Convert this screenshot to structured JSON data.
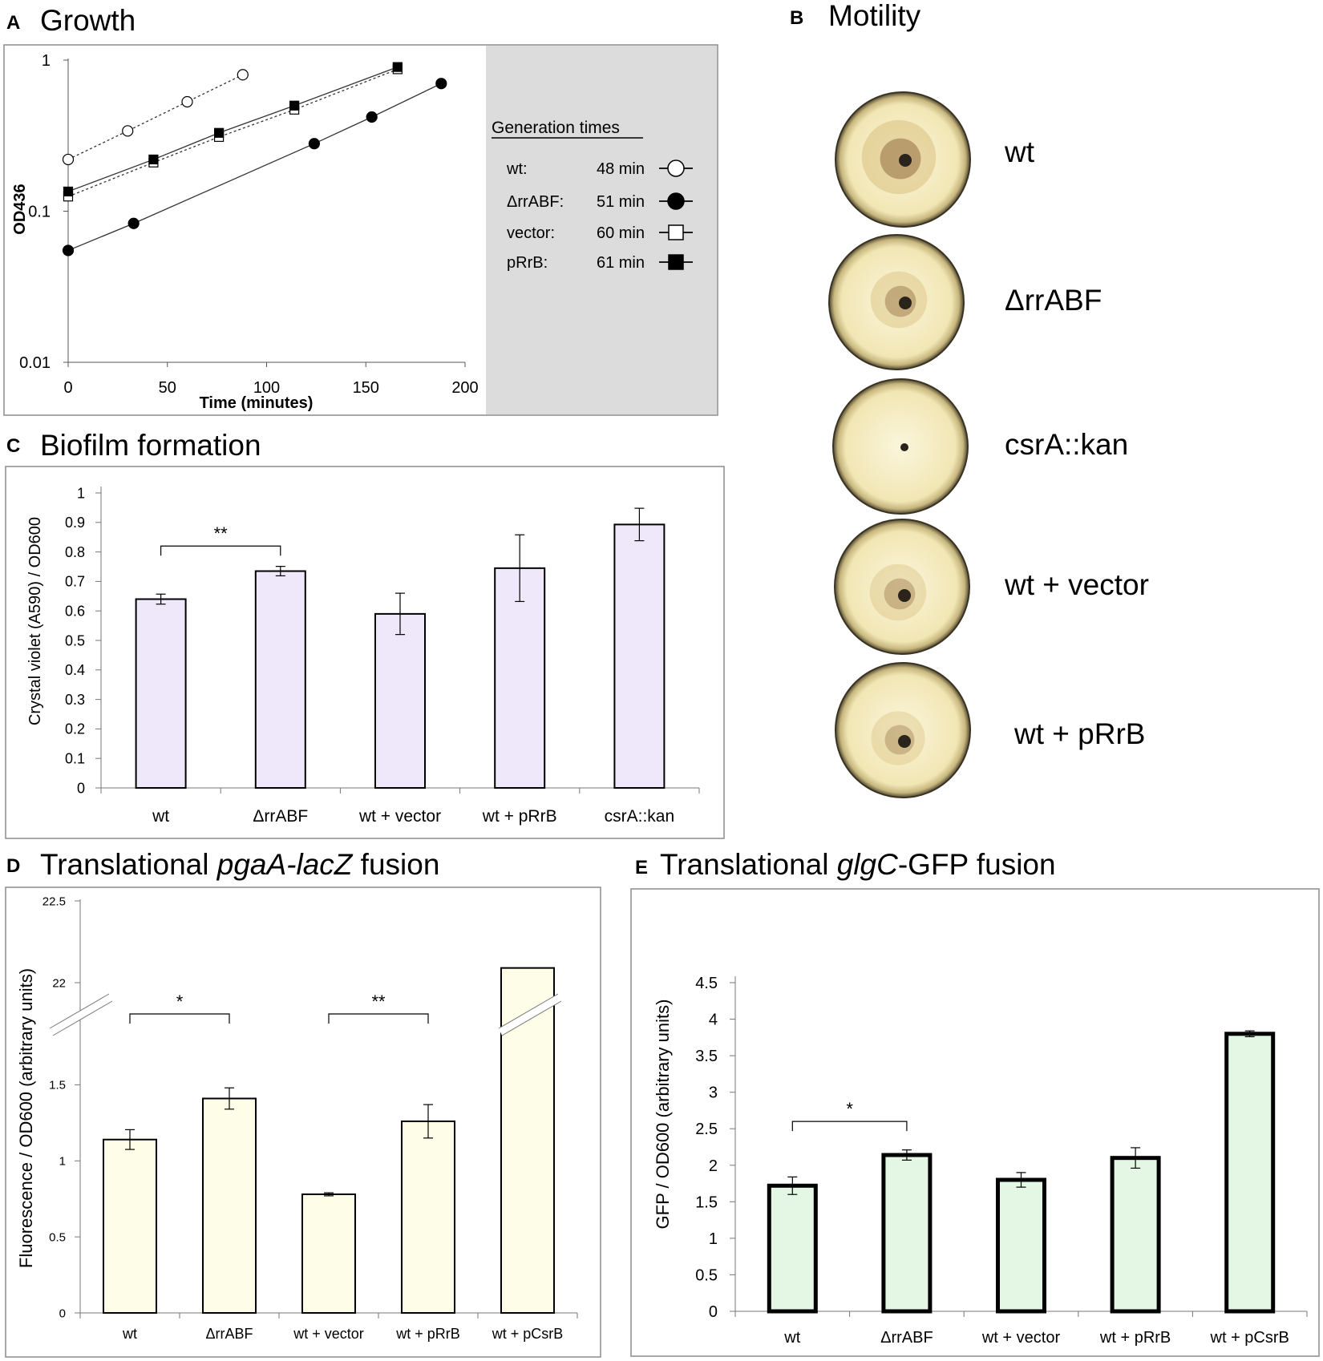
{
  "panels": {
    "A": {
      "letter": "A",
      "title": "Growth"
    },
    "B": {
      "letter": "B",
      "title": "Motility"
    },
    "C": {
      "letter": "C",
      "title": "Biofilm formation"
    },
    "D": {
      "letter": "D",
      "title_pre": "Translational ",
      "title_em": "pgaA-lacZ",
      "title_post": " fusion"
    },
    "E": {
      "letter": "E",
      "title_pre": "Translational ",
      "title_em": "glgC",
      "title_post": "-GFP fusion"
    }
  },
  "legend": {
    "title": "Generation times",
    "rows": [
      {
        "strain": "wt:",
        "time": "48 min",
        "marker": "open-circle"
      },
      {
        "strain": "ΔrrABF:",
        "time": "51 min",
        "marker": "filled-circle"
      },
      {
        "strain": "vector:",
        "time": "60 min",
        "marker": "open-square"
      },
      {
        "strain": "pRrB:",
        "time": "61 min",
        "marker": "filled-square"
      }
    ]
  },
  "motility": {
    "plates": [
      {
        "label": "wt",
        "halo": 0.55,
        "strength": 0.95
      },
      {
        "label": "ΔrrABF",
        "halo": 0.42,
        "strength": 0.75
      },
      {
        "label": "csrA::kan",
        "halo": 0.0,
        "strength": 0.0
      },
      {
        "label": "wt + vector",
        "halo": 0.42,
        "strength": 0.6
      },
      {
        "label": "wt + pRrB",
        "halo": 0.4,
        "strength": 0.55
      }
    ]
  },
  "chart_data": [
    {
      "id": "A",
      "type": "scatter",
      "title": "Growth",
      "xlabel": "Time (minutes)",
      "ylabel": "OD436",
      "yscale": "log",
      "xlim": [
        0,
        200
      ],
      "ylim": [
        0.01,
        1
      ],
      "xticks": [
        0,
        50,
        100,
        150,
        200
      ],
      "yticks": [
        {
          "v": 1,
          "label": "1"
        },
        {
          "v": 0.1,
          "label": "0.1"
        },
        {
          "v": 0.01,
          "label": "0.01"
        }
      ],
      "series": [
        {
          "name": "wt",
          "marker": "open-circle",
          "line": "dashed",
          "x": [
            0,
            30,
            60,
            88
          ],
          "y": [
            0.22,
            0.34,
            0.53,
            0.8
          ]
        },
        {
          "name": "ΔrrABF",
          "marker": "filled-circle",
          "line": "solid",
          "x": [
            0,
            33,
            124,
            153,
            188
          ],
          "y": [
            0.055,
            0.083,
            0.28,
            0.42,
            0.7
          ]
        },
        {
          "name": "vector",
          "marker": "open-square",
          "line": "dashed",
          "x": [
            0,
            43,
            76,
            114,
            166
          ],
          "y": [
            0.125,
            0.21,
            0.31,
            0.47,
            0.87
          ]
        },
        {
          "name": "pRrB",
          "marker": "filled-square",
          "line": "solid",
          "x": [
            0,
            43,
            76,
            114,
            166
          ],
          "y": [
            0.135,
            0.22,
            0.33,
            0.5,
            0.9
          ]
        }
      ]
    },
    {
      "id": "C",
      "type": "bar",
      "title": "Biofilm formation",
      "ylabel": "Crystal violet (A590) / OD600",
      "ylim": [
        0,
        1
      ],
      "yticks": [
        "0",
        "0.1",
        "0.2",
        "0.3",
        "0.4",
        "0.5",
        "0.6",
        "0.7",
        "0.8",
        "0.9",
        "1"
      ],
      "categories": [
        "wt",
        "ΔrrABF",
        "wt + vector",
        "wt + pRrB",
        "csrA::kan"
      ],
      "values": [
        0.64,
        0.735,
        0.59,
        0.745,
        0.893
      ],
      "errors": [
        0.017,
        0.016,
        0.07,
        0.113,
        0.055
      ],
      "significance": [
        {
          "from": 0,
          "to": 1,
          "label": "**",
          "y": 0.82
        }
      ]
    },
    {
      "id": "D",
      "type": "bar",
      "title": "Translational pgaA-lacZ fusion",
      "ylabel": "Fluorescence / OD600 (arbitrary units)",
      "axis_break": true,
      "ylim_lower": [
        0,
        1.75
      ],
      "ylim_upper": [
        21.75,
        22.5
      ],
      "yticks_lower": [
        "0",
        "0.5",
        "1",
        "1.5"
      ],
      "yticks_upper": [
        "22",
        "22.5"
      ],
      "categories": [
        "wt",
        "ΔrrABF",
        "wt + vector",
        "wt + pRrB",
        "wt + pCsrB"
      ],
      "values": [
        1.14,
        1.41,
        0.78,
        1.26,
        22.09
      ],
      "errors": [
        0.065,
        0.07,
        0.01,
        0.11,
        0
      ],
      "significance": [
        {
          "from": 0,
          "to": 1,
          "label": "*"
        },
        {
          "from": 2,
          "to": 3,
          "label": "**"
        }
      ]
    },
    {
      "id": "E",
      "type": "bar",
      "title": "Translational glgC-GFP fusion",
      "ylabel": "GFP / OD600 (arbitrary units)",
      "ylim": [
        0,
        4.5
      ],
      "yticks": [
        "0",
        "0.5",
        "1",
        "1.5",
        "2",
        "2.5",
        "3",
        "3.5",
        "4",
        "4.5"
      ],
      "categories": [
        "wt",
        "ΔrrABF",
        "wt + vector",
        "wt + pRrB",
        "wt + pCsrB"
      ],
      "values": [
        1.72,
        2.14,
        1.8,
        2.1,
        3.8
      ],
      "errors": [
        0.12,
        0.07,
        0.1,
        0.14,
        0.04
      ],
      "significance": [
        {
          "from": 0,
          "to": 1,
          "label": "*",
          "y": 2.6
        }
      ]
    }
  ],
  "colors": {
    "bar_c": "#efe8fb",
    "bar_d": "#fdfde8",
    "bar_e": "#e4f7e4",
    "legend_bg": "#dcdcdc",
    "frame": "#8c8c8c"
  }
}
